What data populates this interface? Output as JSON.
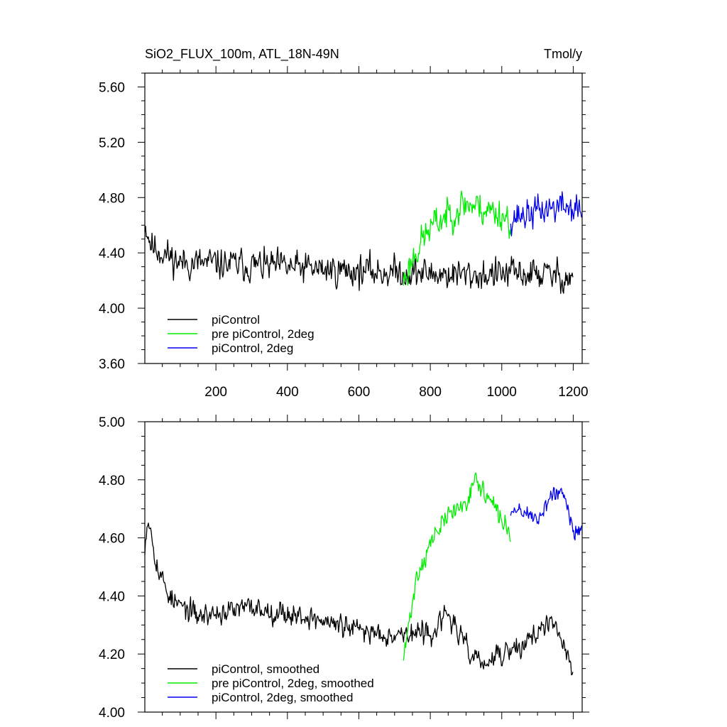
{
  "chart_data": [
    {
      "type": "line",
      "title": "SiO2_FLUX_100m, ATL_18N-49N",
      "units": "Tmol/y",
      "xlim": [
        1,
        1225
      ],
      "ylim": [
        3.6,
        5.7
      ],
      "x_ticks": [
        200,
        400,
        600,
        800,
        1000,
        1200
      ],
      "x_tick_labels": [
        "200",
        "400",
        "600",
        "800",
        "1000",
        "1200"
      ],
      "y_ticks": [
        3.6,
        4.0,
        4.4,
        4.8,
        5.2,
        5.6
      ],
      "y_tick_labels": [
        "3.60",
        "4.00",
        "4.40",
        "4.80",
        "5.20",
        "5.60"
      ],
      "legend_position": "bottom-left",
      "series": [
        {
          "name": "piControl",
          "color": "#000000",
          "x_range": [
            1,
            1200
          ],
          "seed": 11,
          "anchors": [
            [
              1,
              4.62
            ],
            [
              20,
              4.45
            ],
            [
              100,
              4.33
            ],
            [
              300,
              4.31
            ],
            [
              500,
              4.28
            ],
            [
              700,
              4.26
            ],
            [
              900,
              4.24
            ],
            [
              1100,
              4.25
            ],
            [
              1200,
              4.22
            ]
          ],
          "noise": 0.16
        },
        {
          "name": "pre piControl, 2deg",
          "color": "#00ee00",
          "x_range": [
            725,
            1025
          ],
          "seed": 23,
          "anchors": [
            [
              725,
              4.2
            ],
            [
              760,
              4.42
            ],
            [
              800,
              4.58
            ],
            [
              850,
              4.68
            ],
            [
              900,
              4.76
            ],
            [
              950,
              4.72
            ],
            [
              1000,
              4.68
            ],
            [
              1025,
              4.64
            ]
          ],
          "noise": 0.17
        },
        {
          "name": "piControl, 2deg",
          "color": "#0000ee",
          "x_range": [
            1025,
            1225
          ],
          "seed": 37,
          "anchors": [
            [
              1025,
              4.66
            ],
            [
              1075,
              4.68
            ],
            [
              1125,
              4.72
            ],
            [
              1175,
              4.74
            ],
            [
              1225,
              4.7
            ]
          ],
          "noise": 0.16
        }
      ]
    },
    {
      "type": "line",
      "xlim": [
        1,
        1225
      ],
      "ylim": [
        4.0,
        5.0
      ],
      "x_ticks": [
        200,
        400,
        600,
        800,
        1000,
        1200
      ],
      "y_ticks": [
        4.0,
        4.2,
        4.4,
        4.6,
        4.8,
        5.0
      ],
      "y_tick_labels": [
        "4.00",
        "4.20",
        "4.40",
        "4.60",
        "4.80",
        "5.00"
      ],
      "legend_position": "bottom-left",
      "series": [
        {
          "name": "piControl, smoothed",
          "color": "#000000",
          "x_range": [
            1,
            1200
          ],
          "seed": 53,
          "anchors": [
            [
              1,
              4.58
            ],
            [
              10,
              4.68
            ],
            [
              40,
              4.48
            ],
            [
              80,
              4.38
            ],
            [
              150,
              4.33
            ],
            [
              300,
              4.36
            ],
            [
              450,
              4.33
            ],
            [
              600,
              4.28
            ],
            [
              700,
              4.27
            ],
            [
              800,
              4.27
            ],
            [
              850,
              4.34
            ],
            [
              900,
              4.22
            ],
            [
              950,
              4.16
            ],
            [
              1000,
              4.2
            ],
            [
              1050,
              4.22
            ],
            [
              1100,
              4.28
            ],
            [
              1150,
              4.3
            ],
            [
              1200,
              4.14
            ]
          ],
          "noise": 0.055
        },
        {
          "name": "pre piControl, 2deg, smoothed",
          "color": "#00ee00",
          "x_range": [
            725,
            1025
          ],
          "seed": 71,
          "anchors": [
            [
              725,
              4.18
            ],
            [
              740,
              4.3
            ],
            [
              760,
              4.46
            ],
            [
              800,
              4.58
            ],
            [
              850,
              4.68
            ],
            [
              900,
              4.72
            ],
            [
              920,
              4.8
            ],
            [
              950,
              4.76
            ],
            [
              1000,
              4.66
            ],
            [
              1025,
              4.62
            ]
          ],
          "noise": 0.05
        },
        {
          "name": "piControl, 2deg, smoothed",
          "color": "#0000ee",
          "x_range": [
            1025,
            1225
          ],
          "seed": 89,
          "anchors": [
            [
              1025,
              4.68
            ],
            [
              1050,
              4.7
            ],
            [
              1075,
              4.68
            ],
            [
              1100,
              4.66
            ],
            [
              1125,
              4.72
            ],
            [
              1150,
              4.76
            ],
            [
              1175,
              4.74
            ],
            [
              1200,
              4.62
            ],
            [
              1225,
              4.64
            ]
          ],
          "noise": 0.045
        }
      ]
    }
  ]
}
